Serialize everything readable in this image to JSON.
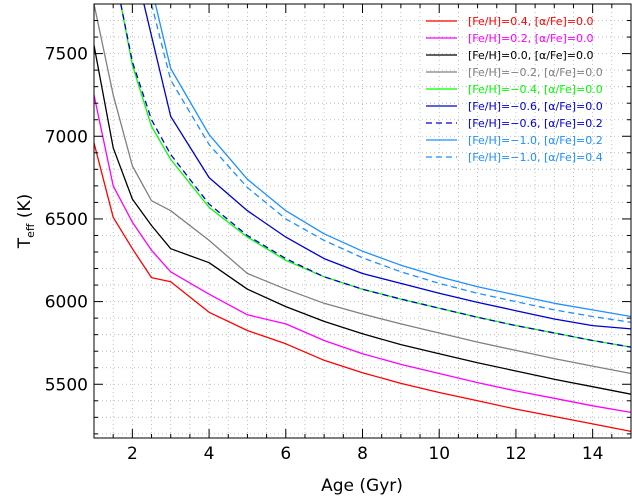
{
  "chart_data": {
    "type": "line",
    "xlabel": "Age (Gyr)",
    "ylabel": "T",
    "ylabel_subscript": "eff",
    "ylabel_unit": " (K)",
    "xlim": [
      1,
      15
    ],
    "ylim": [
      5175,
      7800
    ],
    "xticks": [
      2,
      4,
      6,
      8,
      10,
      12,
      14
    ],
    "yticks": [
      5500,
      6000,
      6500,
      7000,
      7500
    ],
    "grid": true,
    "legend_position": "top-right",
    "series": [
      {
        "name": "[Fe/H]=0.4, [α/Fe]=0.0",
        "color": "#ff0000",
        "dash": false,
        "x": [
          1,
          1.5,
          2,
          2.5,
          3,
          4,
          5,
          6,
          7,
          8,
          9,
          10,
          11,
          12,
          13,
          14,
          15
        ],
        "y": [
          6960,
          6510,
          6320,
          6145,
          6120,
          5935,
          5825,
          5745,
          5645,
          5570,
          5505,
          5450,
          5400,
          5350,
          5305,
          5260,
          5215
        ]
      },
      {
        "name": "[Fe/H]=0.2, [α/Fe]=0.0",
        "color": "#ff00ff",
        "dash": false,
        "x": [
          1,
          1.5,
          2,
          2.5,
          3,
          4,
          5,
          6,
          7,
          8,
          9,
          10,
          11,
          12,
          13,
          14,
          15
        ],
        "y": [
          7250,
          6700,
          6480,
          6310,
          6180,
          6045,
          5920,
          5865,
          5765,
          5685,
          5620,
          5565,
          5510,
          5460,
          5415,
          5370,
          5330
        ]
      },
      {
        "name": "[Fe/H]=0.0, [α/Fe]=0.0",
        "color": "#000000",
        "dash": false,
        "x": [
          1,
          1.5,
          2,
          2.5,
          3,
          4,
          5,
          6,
          7,
          8,
          9,
          10,
          11,
          12,
          13,
          14,
          15
        ],
        "y": [
          7550,
          6930,
          6620,
          6460,
          6320,
          6235,
          6075,
          5970,
          5880,
          5805,
          5740,
          5685,
          5630,
          5580,
          5530,
          5485,
          5440
        ]
      },
      {
        "name": "[Fe/H]=−0.2, [α/Fe]=0.0",
        "color": "#808080",
        "dash": false,
        "x": [
          1,
          1.5,
          2,
          2.5,
          3,
          4,
          5,
          6,
          7,
          8,
          9,
          10,
          11,
          12,
          13,
          14,
          15
        ],
        "y": [
          7800,
          7250,
          6820,
          6610,
          6550,
          6370,
          6170,
          6075,
          5990,
          5925,
          5865,
          5810,
          5755,
          5705,
          5655,
          5610,
          5565
        ]
      },
      {
        "name": "[Fe/H]=−0.4, [α/Fe]=0.0",
        "color": "#00ff00",
        "dash": false,
        "x": [
          1.7,
          2,
          2.5,
          3,
          4,
          5,
          6,
          7,
          8,
          9,
          10,
          11,
          12,
          13,
          14,
          15
        ],
        "y": [
          7800,
          7430,
          7060,
          6860,
          6570,
          6390,
          6250,
          6150,
          6075,
          6015,
          5960,
          5905,
          5855,
          5810,
          5765,
          5725
        ]
      },
      {
        "name": "[Fe/H]=−0.6, [α/Fe]=0.0",
        "color": "#0000cd",
        "dash": false,
        "x": [
          2.3,
          3,
          4,
          5,
          6,
          7,
          8,
          9,
          10,
          11,
          12,
          13,
          14,
          15
        ],
        "y": [
          7800,
          7120,
          6750,
          6550,
          6390,
          6260,
          6170,
          6110,
          6050,
          5995,
          5945,
          5895,
          5855,
          5835
        ]
      },
      {
        "name": "[Fe/H]=−0.6, [α/Fe]=0.2",
        "color": "#0000cd",
        "dash": true,
        "x": [
          1.7,
          2,
          2.5,
          3,
          4,
          5,
          6,
          7,
          8,
          9,
          10,
          11,
          12,
          13,
          14,
          15
        ],
        "y": [
          7800,
          7450,
          7100,
          6890,
          6590,
          6400,
          6260,
          6150,
          6075,
          6015,
          5960,
          5905,
          5855,
          5810,
          5765,
          5725
        ]
      },
      {
        "name": "[Fe/H]=−1.0, [α/Fe]=0.2",
        "color": "#1e90ff",
        "dash": false,
        "x": [
          2.6,
          3,
          4,
          5,
          6,
          7,
          8,
          9,
          10,
          11,
          12,
          13,
          14,
          15
        ],
        "y": [
          7800,
          7410,
          7010,
          6740,
          6550,
          6410,
          6305,
          6220,
          6150,
          6090,
          6040,
          5990,
          5950,
          5910
        ]
      },
      {
        "name": "[Fe/H]=−1.0, [α/Fe]=0.4",
        "color": "#1e90ff",
        "dash": true,
        "x": [
          2.5,
          3,
          4,
          5,
          6,
          7,
          8,
          9,
          10,
          11,
          12,
          13,
          14,
          15
        ],
        "y": [
          7800,
          7340,
          6950,
          6690,
          6500,
          6370,
          6265,
          6180,
          6110,
          6050,
          6000,
          5950,
          5910,
          5875
        ]
      }
    ]
  }
}
